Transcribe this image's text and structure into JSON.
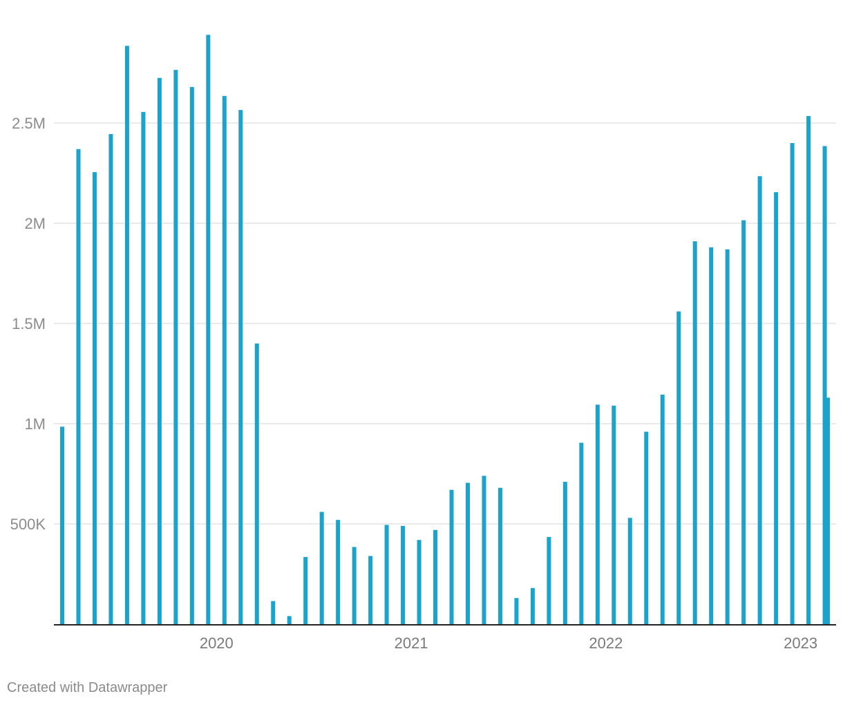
{
  "chart_data": {
    "type": "bar",
    "title": "",
    "xlabel": "",
    "ylabel": "",
    "x": [
      "2019-04",
      "2019-05",
      "2019-06",
      "2019-07",
      "2019-08",
      "2019-09",
      "2019-10",
      "2019-11",
      "2019-12",
      "2020-01",
      "2020-02",
      "2020-03",
      "2020-04",
      "2020-05",
      "2020-06",
      "2020-07",
      "2020-08",
      "2020-09",
      "2020-10",
      "2020-11",
      "2020-12",
      "2021-01",
      "2021-02",
      "2021-03",
      "2021-04",
      "2021-05",
      "2021-06",
      "2021-07",
      "2021-08",
      "2021-09",
      "2021-10",
      "2021-11",
      "2021-12",
      "2022-01",
      "2022-02",
      "2022-03",
      "2022-04",
      "2022-05",
      "2022-06",
      "2022-07",
      "2022-08",
      "2022-09",
      "2022-10",
      "2022-11",
      "2022-12",
      "2023-01",
      "2023-02",
      "2023-03",
      "2023-04"
    ],
    "values": [
      985000,
      2370000,
      2255000,
      2445000,
      2885000,
      2555000,
      2725000,
      2765000,
      2680000,
      2940000,
      2635000,
      2565000,
      1400000,
      115000,
      40000,
      335000,
      560000,
      520000,
      385000,
      340000,
      495000,
      490000,
      420000,
      470000,
      670000,
      705000,
      740000,
      680000,
      130000,
      180000,
      435000,
      710000,
      905000,
      1095000,
      1090000,
      530000,
      960000,
      1145000,
      1560000,
      1910000,
      1880000,
      1870000,
      2015000,
      2235000,
      2155000,
      2400000,
      2535000,
      2385000,
      1130000
    ],
    "ylim": [
      0,
      2950000
    ],
    "y_ticks": [
      {
        "value": 500000,
        "label": "500K"
      },
      {
        "value": 1000000,
        "label": "1M"
      },
      {
        "value": 1500000,
        "label": "1.5M"
      },
      {
        "value": 2000000,
        "label": "2M"
      },
      {
        "value": 2500000,
        "label": "2.5M"
      }
    ],
    "x_ticks": [
      {
        "value": "2020-01",
        "label": "2020"
      },
      {
        "value": "2021-01",
        "label": "2021"
      },
      {
        "value": "2022-01",
        "label": "2022"
      },
      {
        "value": "2023-01",
        "label": "2023"
      }
    ],
    "grid": "horizontal",
    "legend": "none",
    "bar_color": "#1ba3cc",
    "grid_color": "#e3e3e3",
    "baseline_color": "#222222"
  },
  "footer": {
    "credit": "Created with Datawrapper"
  }
}
